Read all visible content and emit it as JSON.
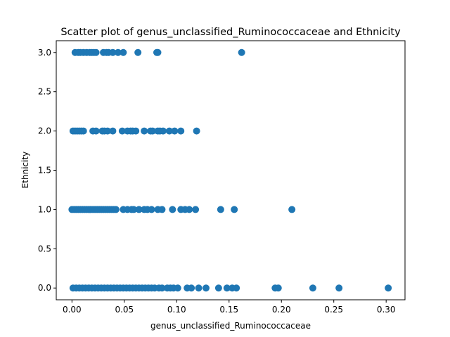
{
  "chart_data": {
    "type": "scatter",
    "title": "Scatter plot of genus_unclassified_Ruminococcaceae and Ethnicity",
    "xlabel": "genus_unclassified_Ruminococcaceae",
    "ylabel": "Ethnicity",
    "xlim": [
      -0.015,
      0.318
    ],
    "ylim": [
      -0.15,
      3.15
    ],
    "xticks": [
      "0.00",
      "0.05",
      "0.10",
      "0.15",
      "0.20",
      "0.25",
      "0.30"
    ],
    "yticks": [
      "0.0",
      "0.5",
      "1.0",
      "1.5",
      "2.0",
      "2.5",
      "3.0"
    ],
    "grid": false,
    "marker_color": "#1f77b4",
    "series": [
      {
        "points": [
          {
            "x": 0.003,
            "y": 3
          },
          {
            "x": 0.006,
            "y": 3
          },
          {
            "x": 0.008,
            "y": 3
          },
          {
            "x": 0.011,
            "y": 3
          },
          {
            "x": 0.014,
            "y": 3
          },
          {
            "x": 0.017,
            "y": 3
          },
          {
            "x": 0.019,
            "y": 3
          },
          {
            "x": 0.021,
            "y": 3
          },
          {
            "x": 0.023,
            "y": 3
          },
          {
            "x": 0.03,
            "y": 3
          },
          {
            "x": 0.033,
            "y": 3
          },
          {
            "x": 0.035,
            "y": 3
          },
          {
            "x": 0.039,
            "y": 3
          },
          {
            "x": 0.044,
            "y": 3
          },
          {
            "x": 0.049,
            "y": 3
          },
          {
            "x": 0.063,
            "y": 3
          },
          {
            "x": 0.081,
            "y": 3
          },
          {
            "x": 0.082,
            "y": 3
          },
          {
            "x": 0.162,
            "y": 3
          },
          {
            "x": 0.001,
            "y": 2
          },
          {
            "x": 0.003,
            "y": 2
          },
          {
            "x": 0.005,
            "y": 2
          },
          {
            "x": 0.007,
            "y": 2
          },
          {
            "x": 0.009,
            "y": 2
          },
          {
            "x": 0.011,
            "y": 2
          },
          {
            "x": 0.02,
            "y": 2
          },
          {
            "x": 0.023,
            "y": 2
          },
          {
            "x": 0.029,
            "y": 2
          },
          {
            "x": 0.031,
            "y": 2
          },
          {
            "x": 0.034,
            "y": 2
          },
          {
            "x": 0.039,
            "y": 2
          },
          {
            "x": 0.048,
            "y": 2
          },
          {
            "x": 0.053,
            "y": 2
          },
          {
            "x": 0.056,
            "y": 2
          },
          {
            "x": 0.058,
            "y": 2
          },
          {
            "x": 0.061,
            "y": 2
          },
          {
            "x": 0.069,
            "y": 2
          },
          {
            "x": 0.075,
            "y": 2
          },
          {
            "x": 0.077,
            "y": 2
          },
          {
            "x": 0.082,
            "y": 2
          },
          {
            "x": 0.084,
            "y": 2
          },
          {
            "x": 0.087,
            "y": 2
          },
          {
            "x": 0.093,
            "y": 2
          },
          {
            "x": 0.098,
            "y": 2
          },
          {
            "x": 0.104,
            "y": 2
          },
          {
            "x": 0.119,
            "y": 2
          },
          {
            "x": 0.0,
            "y": 1
          },
          {
            "x": 0.002,
            "y": 1
          },
          {
            "x": 0.004,
            "y": 1
          },
          {
            "x": 0.006,
            "y": 1
          },
          {
            "x": 0.008,
            "y": 1
          },
          {
            "x": 0.01,
            "y": 1
          },
          {
            "x": 0.012,
            "y": 1
          },
          {
            "x": 0.014,
            "y": 1
          },
          {
            "x": 0.016,
            "y": 1
          },
          {
            "x": 0.018,
            "y": 1
          },
          {
            "x": 0.02,
            "y": 1
          },
          {
            "x": 0.022,
            "y": 1
          },
          {
            "x": 0.024,
            "y": 1
          },
          {
            "x": 0.026,
            "y": 1
          },
          {
            "x": 0.028,
            "y": 1
          },
          {
            "x": 0.03,
            "y": 1
          },
          {
            "x": 0.032,
            "y": 1
          },
          {
            "x": 0.034,
            "y": 1
          },
          {
            "x": 0.036,
            "y": 1
          },
          {
            "x": 0.038,
            "y": 1
          },
          {
            "x": 0.04,
            "y": 1
          },
          {
            "x": 0.042,
            "y": 1
          },
          {
            "x": 0.049,
            "y": 1
          },
          {
            "x": 0.053,
            "y": 1
          },
          {
            "x": 0.057,
            "y": 1
          },
          {
            "x": 0.059,
            "y": 1
          },
          {
            "x": 0.064,
            "y": 1
          },
          {
            "x": 0.069,
            "y": 1
          },
          {
            "x": 0.072,
            "y": 1
          },
          {
            "x": 0.076,
            "y": 1
          },
          {
            "x": 0.082,
            "y": 1
          },
          {
            "x": 0.086,
            "y": 1
          },
          {
            "x": 0.096,
            "y": 1
          },
          {
            "x": 0.104,
            "y": 1
          },
          {
            "x": 0.108,
            "y": 1
          },
          {
            "x": 0.112,
            "y": 1
          },
          {
            "x": 0.118,
            "y": 1
          },
          {
            "x": 0.142,
            "y": 1
          },
          {
            "x": 0.155,
            "y": 1
          },
          {
            "x": 0.21,
            "y": 1
          },
          {
            "x": 0.001,
            "y": 0
          },
          {
            "x": 0.004,
            "y": 0
          },
          {
            "x": 0.007,
            "y": 0
          },
          {
            "x": 0.01,
            "y": 0
          },
          {
            "x": 0.013,
            "y": 0
          },
          {
            "x": 0.016,
            "y": 0
          },
          {
            "x": 0.019,
            "y": 0
          },
          {
            "x": 0.022,
            "y": 0
          },
          {
            "x": 0.025,
            "y": 0
          },
          {
            "x": 0.028,
            "y": 0
          },
          {
            "x": 0.031,
            "y": 0
          },
          {
            "x": 0.034,
            "y": 0
          },
          {
            "x": 0.037,
            "y": 0
          },
          {
            "x": 0.04,
            "y": 0
          },
          {
            "x": 0.043,
            "y": 0
          },
          {
            "x": 0.046,
            "y": 0
          },
          {
            "x": 0.049,
            "y": 0
          },
          {
            "x": 0.052,
            "y": 0
          },
          {
            "x": 0.055,
            "y": 0
          },
          {
            "x": 0.058,
            "y": 0
          },
          {
            "x": 0.061,
            "y": 0
          },
          {
            "x": 0.064,
            "y": 0
          },
          {
            "x": 0.067,
            "y": 0
          },
          {
            "x": 0.07,
            "y": 0
          },
          {
            "x": 0.073,
            "y": 0
          },
          {
            "x": 0.076,
            "y": 0
          },
          {
            "x": 0.079,
            "y": 0
          },
          {
            "x": 0.083,
            "y": 0
          },
          {
            "x": 0.086,
            "y": 0
          },
          {
            "x": 0.091,
            "y": 0
          },
          {
            "x": 0.094,
            "y": 0
          },
          {
            "x": 0.097,
            "y": 0
          },
          {
            "x": 0.101,
            "y": 0
          },
          {
            "x": 0.11,
            "y": 0
          },
          {
            "x": 0.114,
            "y": 0
          },
          {
            "x": 0.121,
            "y": 0
          },
          {
            "x": 0.128,
            "y": 0
          },
          {
            "x": 0.14,
            "y": 0
          },
          {
            "x": 0.148,
            "y": 0
          },
          {
            "x": 0.153,
            "y": 0
          },
          {
            "x": 0.157,
            "y": 0
          },
          {
            "x": 0.194,
            "y": 0
          },
          {
            "x": 0.197,
            "y": 0
          },
          {
            "x": 0.23,
            "y": 0
          },
          {
            "x": 0.255,
            "y": 0
          },
          {
            "x": 0.302,
            "y": 0
          }
        ]
      }
    ]
  }
}
